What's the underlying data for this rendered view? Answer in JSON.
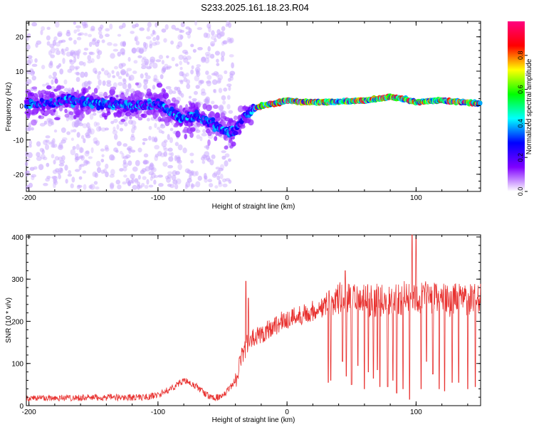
{
  "title": "S233.2025.161.18.23.R04",
  "chart_data": [
    {
      "type": "heatmap",
      "title": "S233.2025.161.18.23.R04",
      "xlabel": "Height of straight line (km)",
      "ylabel": "Frequency (Hz)",
      "xlim": [
        -202,
        150
      ],
      "ylim": [
        -25,
        24.5
      ],
      "x_ticks": [
        -200,
        -100,
        0,
        100
      ],
      "y_ticks": [
        -20,
        -10,
        0,
        10,
        20
      ],
      "colorbar": {
        "label": "Normalized spectral amplitude",
        "range": [
          0,
          1
        ],
        "ticks": [
          "0.0",
          "0.2",
          "0.4",
          "0.6",
          "0.8"
        ],
        "colors": [
          "#ffffff",
          "#7f00ff",
          "#0000ff",
          "#00ffff",
          "#00ff00",
          "#ffff00",
          "#ff0000",
          "#ff0080"
        ]
      },
      "ridge": {
        "description_points_km": [
          -200,
          -170,
          -140,
          -120,
          -100,
          -90,
          -80,
          -70,
          -60,
          -50,
          -45,
          -40,
          -35,
          -30,
          -20,
          -10,
          0,
          10,
          30,
          60,
          80,
          90,
          100,
          120,
          150
        ],
        "frequency_hz": [
          0,
          1.5,
          0.5,
          0,
          0.5,
          -2,
          -4,
          -3,
          -5,
          -6.5,
          -8,
          -7,
          -4,
          -2,
          0,
          0.5,
          1.5,
          1,
          1,
          1.5,
          2.5,
          2,
          1,
          1.5,
          0.5
        ]
      }
    },
    {
      "type": "line",
      "xlabel": "Height of straight line (km)",
      "ylabel": "SNR (10 * v/v)",
      "xlim": [
        -202,
        150
      ],
      "ylim": [
        0,
        405
      ],
      "x_ticks": [
        -200,
        -100,
        0,
        100
      ],
      "y_ticks": [
        0,
        100,
        200,
        300,
        400
      ],
      "series_color": "#e8312f",
      "trend": {
        "x": [
          -202,
          -110,
          -100,
          -90,
          -80,
          -70,
          -60,
          -50,
          -40,
          -35,
          -30,
          -20,
          -10,
          0,
          10,
          20,
          30,
          40,
          50,
          60,
          80,
          100,
          120,
          150
        ],
        "y": [
          18,
          20,
          25,
          40,
          60,
          45,
          20,
          20,
          60,
          120,
          150,
          170,
          190,
          205,
          215,
          225,
          235,
          255,
          250,
          248,
          250,
          260,
          250,
          250
        ]
      },
      "spikes": [
        {
          "x": -32,
          "y": 295
        },
        {
          "x": -30,
          "y": 255
        },
        {
          "x": 45,
          "y": 320
        },
        {
          "x": 97,
          "y": 405
        },
        {
          "x": 100,
          "y": 400
        }
      ],
      "dropouts": [
        {
          "x": 32,
          "y": 55
        },
        {
          "x": 34,
          "y": 60
        },
        {
          "x": 43,
          "y": 105
        },
        {
          "x": 46,
          "y": 70
        },
        {
          "x": 50,
          "y": 50
        },
        {
          "x": 55,
          "y": 95
        },
        {
          "x": 60,
          "y": 40
        },
        {
          "x": 63,
          "y": 80
        },
        {
          "x": 67,
          "y": 65
        },
        {
          "x": 70,
          "y": 85
        },
        {
          "x": 72,
          "y": 45
        },
        {
          "x": 78,
          "y": 45
        },
        {
          "x": 82,
          "y": 60
        },
        {
          "x": 85,
          "y": 30
        },
        {
          "x": 90,
          "y": 40
        },
        {
          "x": 95,
          "y": 15
        },
        {
          "x": 104,
          "y": 40
        },
        {
          "x": 108,
          "y": 105
        },
        {
          "x": 113,
          "y": 75
        },
        {
          "x": 118,
          "y": 40
        },
        {
          "x": 122,
          "y": 35
        },
        {
          "x": 128,
          "y": 55
        },
        {
          "x": 133,
          "y": 55
        },
        {
          "x": 140,
          "y": 40
        },
        {
          "x": 146,
          "y": 45
        }
      ]
    }
  ]
}
